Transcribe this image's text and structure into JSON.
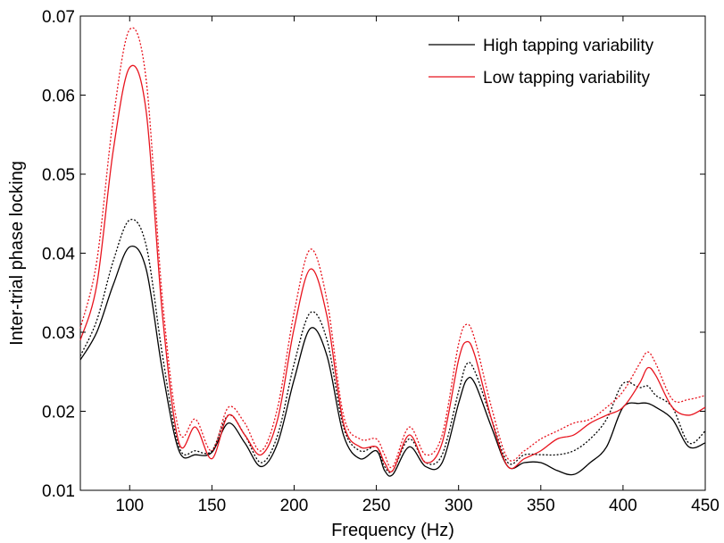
{
  "chart_data": {
    "type": "line",
    "title": "",
    "xlabel": "Frequency (Hz)",
    "ylabel": "Inter-trial phase locking",
    "xlim": [
      70,
      450
    ],
    "ylim": [
      0.01,
      0.07
    ],
    "xticks": [
      100,
      150,
      200,
      250,
      300,
      350,
      400,
      450
    ],
    "yticks": [
      0.01,
      0.02,
      0.03,
      0.04,
      0.05,
      0.06,
      0.07
    ],
    "xtick_labels": [
      "100",
      "150",
      "200",
      "250",
      "300",
      "350",
      "400",
      "450"
    ],
    "ytick_labels": [
      "0.01",
      "0.02",
      "0.03",
      "0.04",
      "0.05",
      "0.06",
      "0.07"
    ],
    "grid": false,
    "legend_position": "top-right",
    "x": [
      70,
      80,
      90,
      100,
      110,
      120,
      130,
      140,
      150,
      160,
      170,
      180,
      190,
      200,
      210,
      220,
      230,
      240,
      250,
      255,
      260,
      270,
      280,
      290,
      300,
      305,
      310,
      320,
      330,
      340,
      350,
      360,
      370,
      380,
      390,
      400,
      410,
      415,
      420,
      430,
      440,
      450
    ],
    "series": [
      {
        "name": "High tapping variability",
        "color": "#000000",
        "line_style": "solid",
        "values": [
          0.0265,
          0.03,
          0.036,
          0.0408,
          0.038,
          0.025,
          0.015,
          0.0145,
          0.0148,
          0.0185,
          0.016,
          0.013,
          0.016,
          0.024,
          0.0305,
          0.027,
          0.017,
          0.014,
          0.015,
          0.0125,
          0.012,
          0.0155,
          0.013,
          0.0135,
          0.021,
          0.024,
          0.0235,
          0.018,
          0.013,
          0.0135,
          0.0135,
          0.0125,
          0.012,
          0.0135,
          0.0155,
          0.0205,
          0.021,
          0.021,
          0.0205,
          0.019,
          0.0155,
          0.016
        ]
      },
      {
        "name": "",
        "color": "#000000",
        "line_style": "dotted",
        "values": [
          0.027,
          0.0315,
          0.039,
          0.0442,
          0.041,
          0.027,
          0.0155,
          0.015,
          0.015,
          0.0195,
          0.017,
          0.0135,
          0.017,
          0.026,
          0.0325,
          0.029,
          0.018,
          0.015,
          0.0155,
          0.013,
          0.0125,
          0.0165,
          0.0135,
          0.0145,
          0.0225,
          0.026,
          0.025,
          0.019,
          0.0135,
          0.0145,
          0.0145,
          0.0145,
          0.015,
          0.0165,
          0.019,
          0.0235,
          0.023,
          0.0232,
          0.022,
          0.0205,
          0.016,
          0.0175
        ]
      },
      {
        "name": "Low tapping variability",
        "color": "#e8141e",
        "line_style": "solid",
        "values": [
          0.029,
          0.036,
          0.053,
          0.0635,
          0.058,
          0.032,
          0.016,
          0.018,
          0.014,
          0.0195,
          0.017,
          0.0145,
          0.019,
          0.0305,
          0.038,
          0.032,
          0.0185,
          0.0155,
          0.0155,
          0.0135,
          0.0125,
          0.017,
          0.0135,
          0.016,
          0.0265,
          0.0288,
          0.027,
          0.019,
          0.013,
          0.014,
          0.015,
          0.0165,
          0.017,
          0.0185,
          0.0195,
          0.0205,
          0.0235,
          0.0255,
          0.0245,
          0.0205,
          0.0195,
          0.0205
        ]
      },
      {
        "name": "",
        "color": "#e8141e",
        "line_style": "dotted",
        "values": [
          0.0305,
          0.039,
          0.057,
          0.0683,
          0.062,
          0.034,
          0.0175,
          0.019,
          0.015,
          0.0205,
          0.0185,
          0.015,
          0.0205,
          0.0325,
          0.0405,
          0.034,
          0.0195,
          0.0165,
          0.0165,
          0.0145,
          0.013,
          0.018,
          0.0145,
          0.017,
          0.0285,
          0.031,
          0.029,
          0.0205,
          0.014,
          0.015,
          0.0165,
          0.0175,
          0.0185,
          0.019,
          0.0205,
          0.0225,
          0.026,
          0.0275,
          0.026,
          0.0215,
          0.0215,
          0.022
        ]
      }
    ]
  }
}
